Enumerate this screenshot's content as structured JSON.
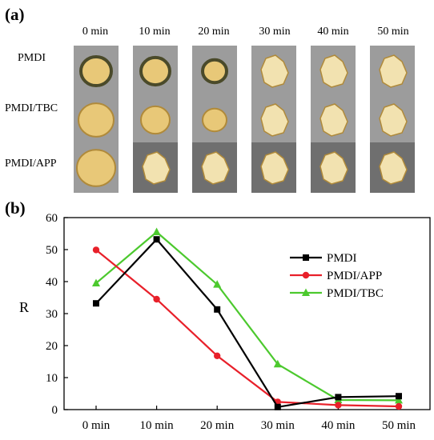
{
  "panel_a": {
    "label": "(a)",
    "columns": [
      "0 min",
      "10 min",
      "20 min",
      "30 min",
      "40 min",
      "50 min"
    ],
    "rows": [
      "PMDI",
      "PMDI/TBC",
      "PMDI/APP"
    ],
    "sample_color": "#e8c878",
    "edge_color": "#b08a3a"
  },
  "panel_b": {
    "label": "(b)"
  },
  "chart_data": {
    "type": "line",
    "categories": [
      "0 min",
      "10 min",
      "20 min",
      "30 min",
      "40 min",
      "50 min"
    ],
    "ylabel": "R",
    "xlabel": "",
    "ylim": [
      0,
      60
    ],
    "yticks": [
      0,
      10,
      20,
      30,
      40,
      50,
      60
    ],
    "grid": false,
    "legend_position": "right",
    "series": [
      {
        "name": "PMDI",
        "color": "#000000",
        "marker": "square",
        "values": [
          33.2,
          53.2,
          31.3,
          0.8,
          3.9,
          4.2
        ]
      },
      {
        "name": "PMDI/APP",
        "color": "#e8202a",
        "marker": "circle",
        "values": [
          49.9,
          34.5,
          16.8,
          2.4,
          1.4,
          1.0
        ]
      },
      {
        "name": "PMDI/TBC",
        "color": "#4cc92e",
        "marker": "triangle",
        "values": [
          39.5,
          55.5,
          39.1,
          14.2,
          3.0,
          2.9
        ]
      }
    ]
  }
}
